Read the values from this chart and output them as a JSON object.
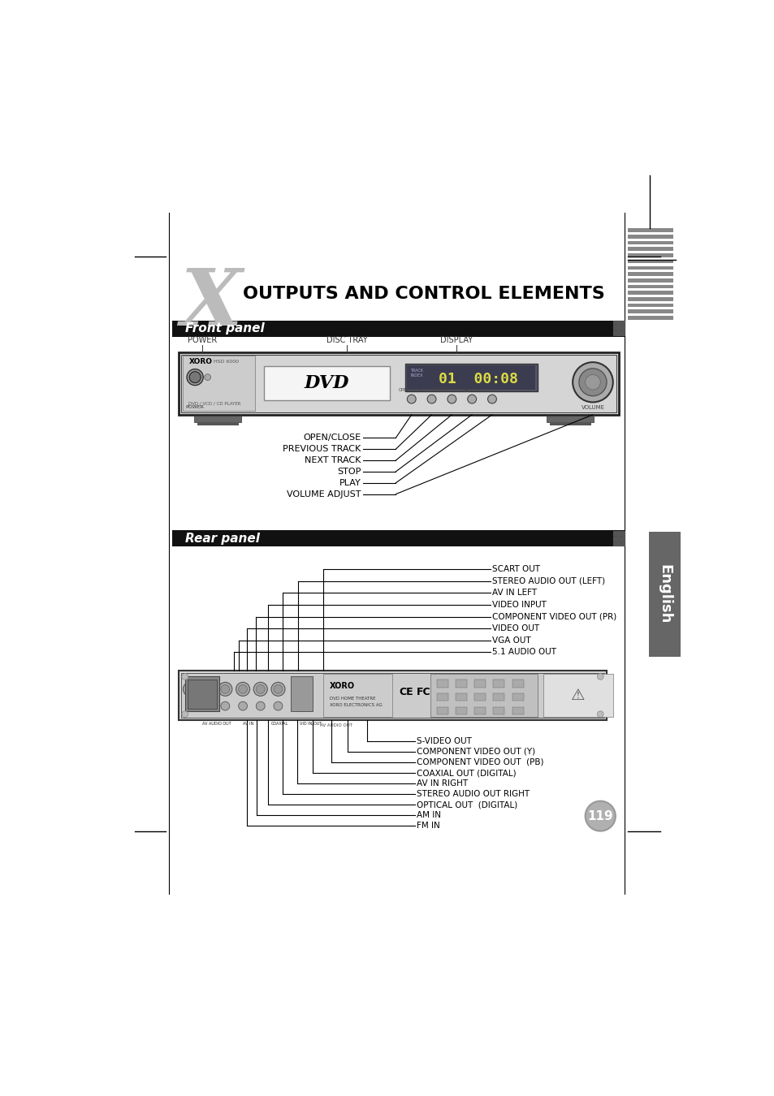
{
  "title": "OUTPUTS AND CONTROL ELEMENTS",
  "front_panel_label": "Front panel",
  "rear_panel_label": "Rear panel",
  "front_labels_top": [
    "POWER",
    "DISC TRAY",
    "DISPLAY"
  ],
  "front_controls": [
    "OPEN/CLOSE",
    "PREVIOUS TRACK",
    "NEXT TRACK",
    "STOP",
    "PLAY",
    "VOLUME ADJUST"
  ],
  "rear_labels_right": [
    "SCART OUT",
    "STEREO AUDIO OUT (LEFT)",
    "AV IN LEFT",
    "VIDEO INPUT",
    "COMPONENT VIDEO OUT (PR)",
    "VIDEO OUT",
    "VGA OUT",
    "5.1 AUDIO OUT"
  ],
  "rear_labels_bottom": [
    "S-VIDEO OUT",
    "COMPONENT VIDEO OUT (Y)",
    "COMPONENT VIDEO OUT  (PB)",
    "COAXIAL OUT (DIGITAL)",
    "AV IN RIGHT",
    "STEREO AUDIO OUT RIGHT",
    "OPTICAL OUT  (DIGITAL)",
    "AM IN",
    "FM IN"
  ],
  "page_number": "119",
  "english_tab": "English",
  "bg_color": "#ffffff",
  "header_bg": "#111111",
  "header_text_color": "#ffffff",
  "body_text_color": "#000000",
  "tab_bg": "#666666",
  "tab_text_color": "#ffffff"
}
